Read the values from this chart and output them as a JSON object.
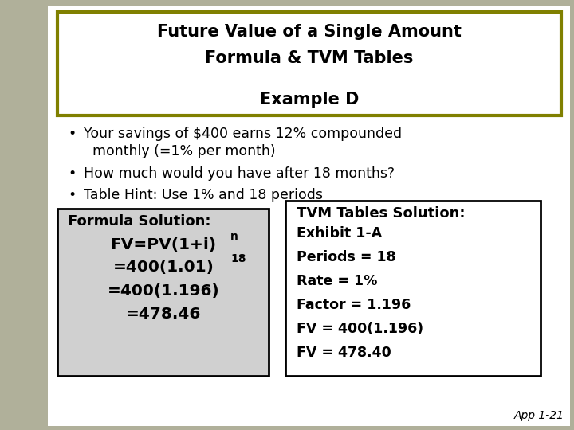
{
  "title_line1": "Future Value of a Single Amount",
  "title_line2": "Formula & TVM Tables",
  "title_line3": "Example D",
  "title_box_color": "#ffffff",
  "title_border_color": "#808000",
  "bg_color": "#b0b09a",
  "bullet1_line1": "Your savings of $400 earns 12% compounded",
  "bullet1_line2": "  monthly (=1% per month)",
  "bullet2": "How much would you have after 18 months?",
  "bullet3": "Table Hint: Use 1% and 18 periods",
  "formula_box_bg": "#d0d0d0",
  "formula_box_border": "#000000",
  "formula_title": "Formula Solution:",
  "formula_line1_main": "FV=PV(1+i)",
  "formula_line1_super": "n",
  "formula_line2_main": "=400(1.01)",
  "formula_line2_super": "18",
  "formula_line3": "=400(1.196)",
  "formula_line4": "=478.46",
  "tvm_box_bg": "#ffffff",
  "tvm_box_border": "#000000",
  "tvm_title": "TVM Tables Solution:",
  "tvm_line1": "Exhibit 1-A",
  "tvm_line2": "Periods = 18",
  "tvm_line3": "Rate = 1%",
  "tvm_line4": "Factor = 1.196",
  "tvm_line5": "FV = 400(1.196)",
  "tvm_line6": "FV = 478.40",
  "footer": "App 1-21",
  "white_area_color": "#ffffff",
  "screw_strip_color": "#b0b09a"
}
